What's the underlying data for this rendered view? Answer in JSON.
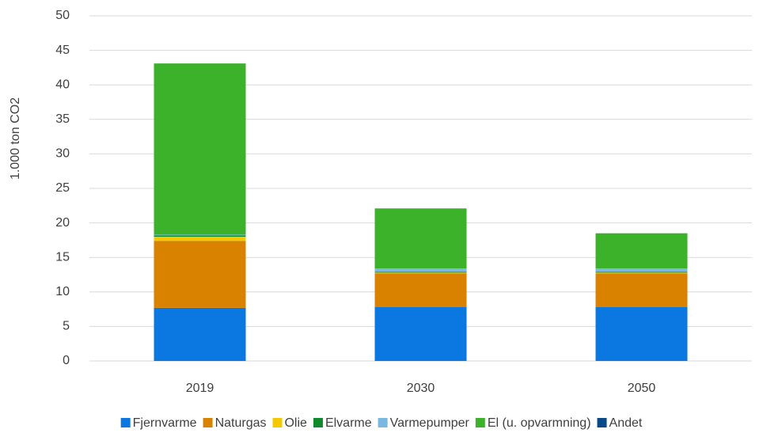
{
  "chart_data": {
    "type": "stacked_bar",
    "y_label": "1.000 ton CO2",
    "categories": [
      "2019",
      "2030",
      "2050"
    ],
    "series": [
      {
        "name": "Fjernvarme",
        "color": "#0a78e0",
        "values": [
          7.7,
          7.8,
          7.8
        ]
      },
      {
        "name": "Naturgas",
        "color": "#d98200",
        "values": [
          9.7,
          4.9,
          4.9
        ]
      },
      {
        "name": "Olie",
        "color": "#f5c800",
        "values": [
          0.6,
          0.1,
          0.1
        ]
      },
      {
        "name": "Elvarme",
        "color": "#118a2e",
        "values": [
          0.2,
          0.1,
          0.1
        ]
      },
      {
        "name": "Varmepumper",
        "color": "#7ab8e0",
        "values": [
          0.1,
          0.5,
          0.5
        ]
      },
      {
        "name": "El (u. opvarmning)",
        "color": "#3cb22a",
        "values": [
          24.8,
          8.7,
          5.1
        ]
      },
      {
        "name": "Andet",
        "color": "#0a4a8a",
        "values": [
          0,
          0,
          0
        ]
      }
    ],
    "ylim": [
      0,
      50
    ],
    "yticks": [
      0,
      5,
      10,
      15,
      20,
      25,
      30,
      35,
      40,
      45,
      50
    ],
    "grid": true
  }
}
